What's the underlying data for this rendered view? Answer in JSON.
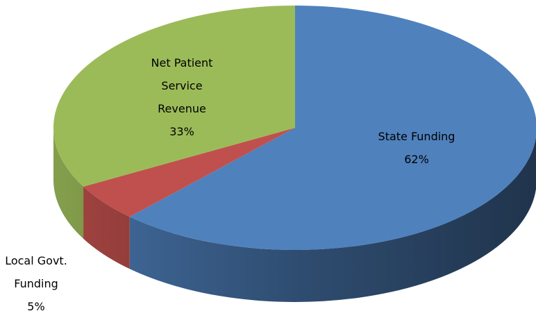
{
  "chart_data": {
    "type": "pie",
    "categories": [
      "State Funding",
      "Local Govt. Funding",
      "Net Patient Service Revenue"
    ],
    "values": [
      62,
      5,
      33
    ],
    "value_labels": [
      "62%",
      "5%",
      "33%"
    ],
    "colors": [
      "#4f81bd",
      "#c0504d",
      "#9bbb59"
    ]
  }
}
